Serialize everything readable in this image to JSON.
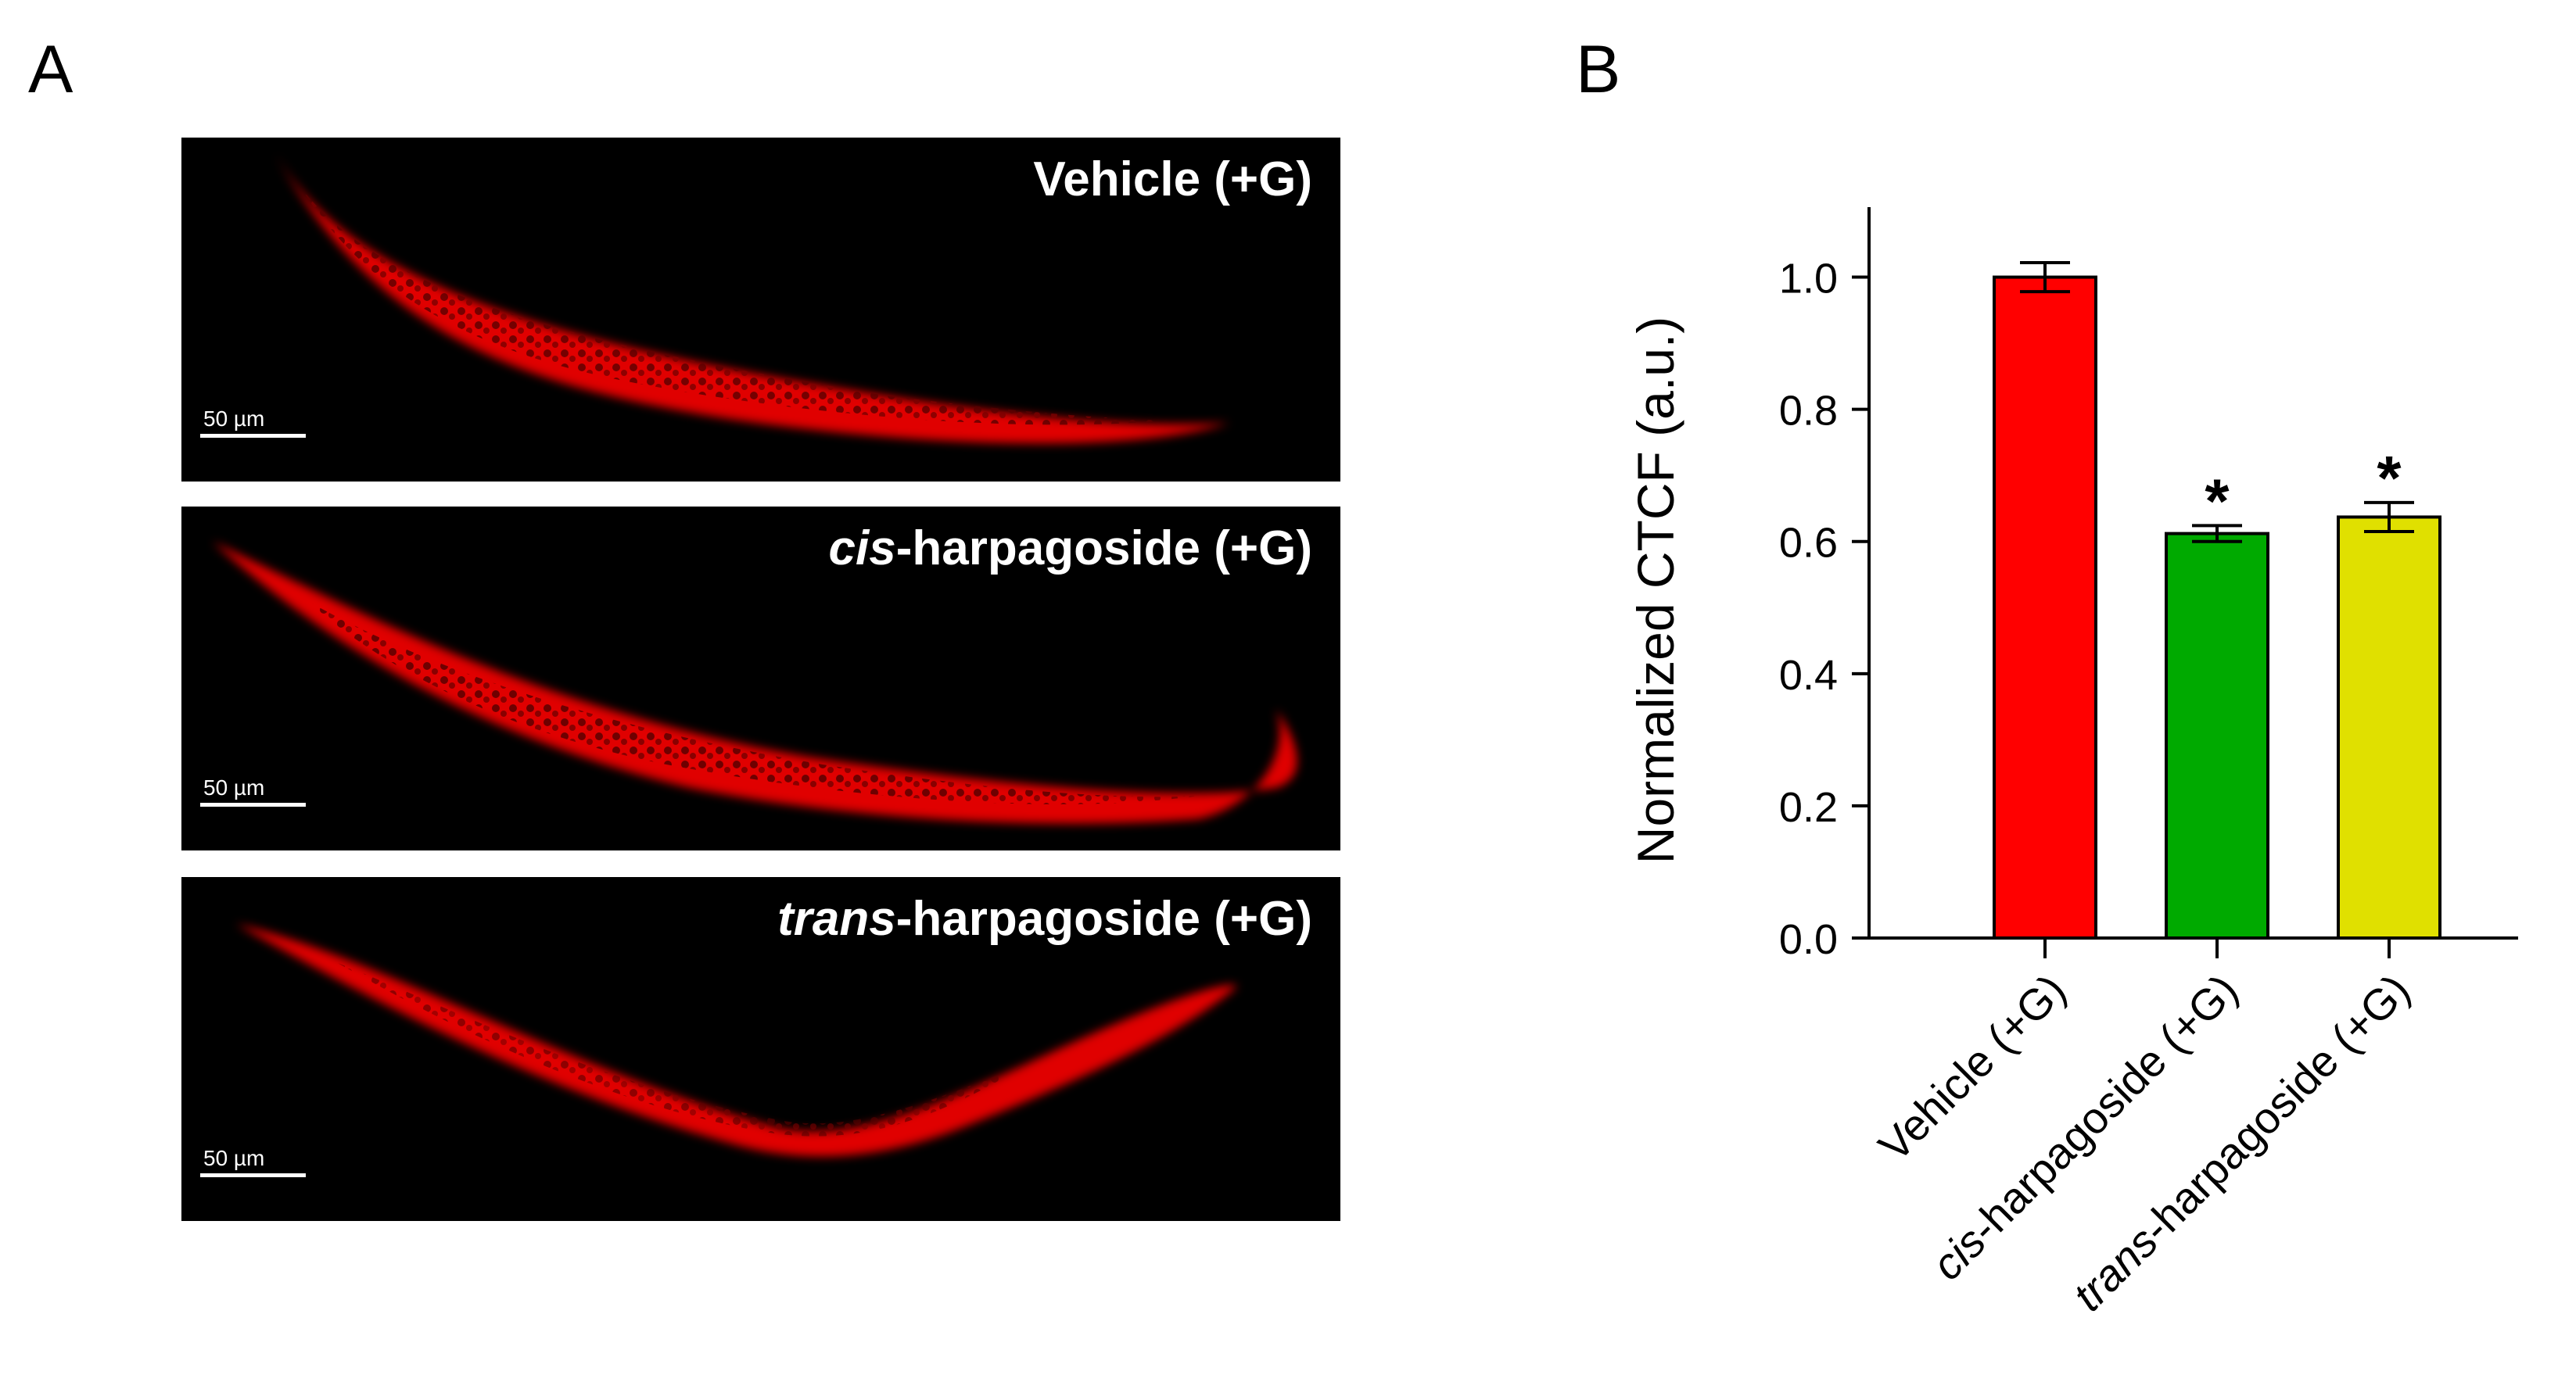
{
  "figure": {
    "panel_a_letter": "A",
    "panel_b_letter": "B",
    "scale_bar_label": "50 µm",
    "micrographs": [
      {
        "prefix": "",
        "italic": "",
        "suffix": "Vehicle (+G)"
      },
      {
        "prefix": "",
        "italic": "cis",
        "suffix": "-harpagoside (+G)"
      },
      {
        "prefix": "",
        "italic": "trans",
        "suffix": "-harpagoside (+G)"
      }
    ]
  },
  "chart_data": {
    "type": "bar",
    "categories": [
      {
        "italic": "",
        "rest": "Vehicle (+G)"
      },
      {
        "italic": "cis",
        "rest": "-harpagoside (+G)"
      },
      {
        "italic": "trans",
        "rest": "-harpagoside (+G)"
      }
    ],
    "values": [
      1.0,
      0.612,
      0.637
    ],
    "errors": [
      0.022,
      0.012,
      0.022
    ],
    "significance": [
      "",
      "*",
      "*"
    ],
    "colors": [
      "#ff0000",
      "#00aa00",
      "#e0e000"
    ],
    "ylabel": "Normalized CTCF (a.u.)",
    "ylim": [
      0.0,
      1.1
    ],
    "yticks": [
      0.0,
      0.2,
      0.4,
      0.6,
      0.8,
      1.0
    ],
    "ytick_labels": [
      "0.0",
      "0.2",
      "0.4",
      "0.6",
      "0.8",
      "1.0"
    ]
  }
}
